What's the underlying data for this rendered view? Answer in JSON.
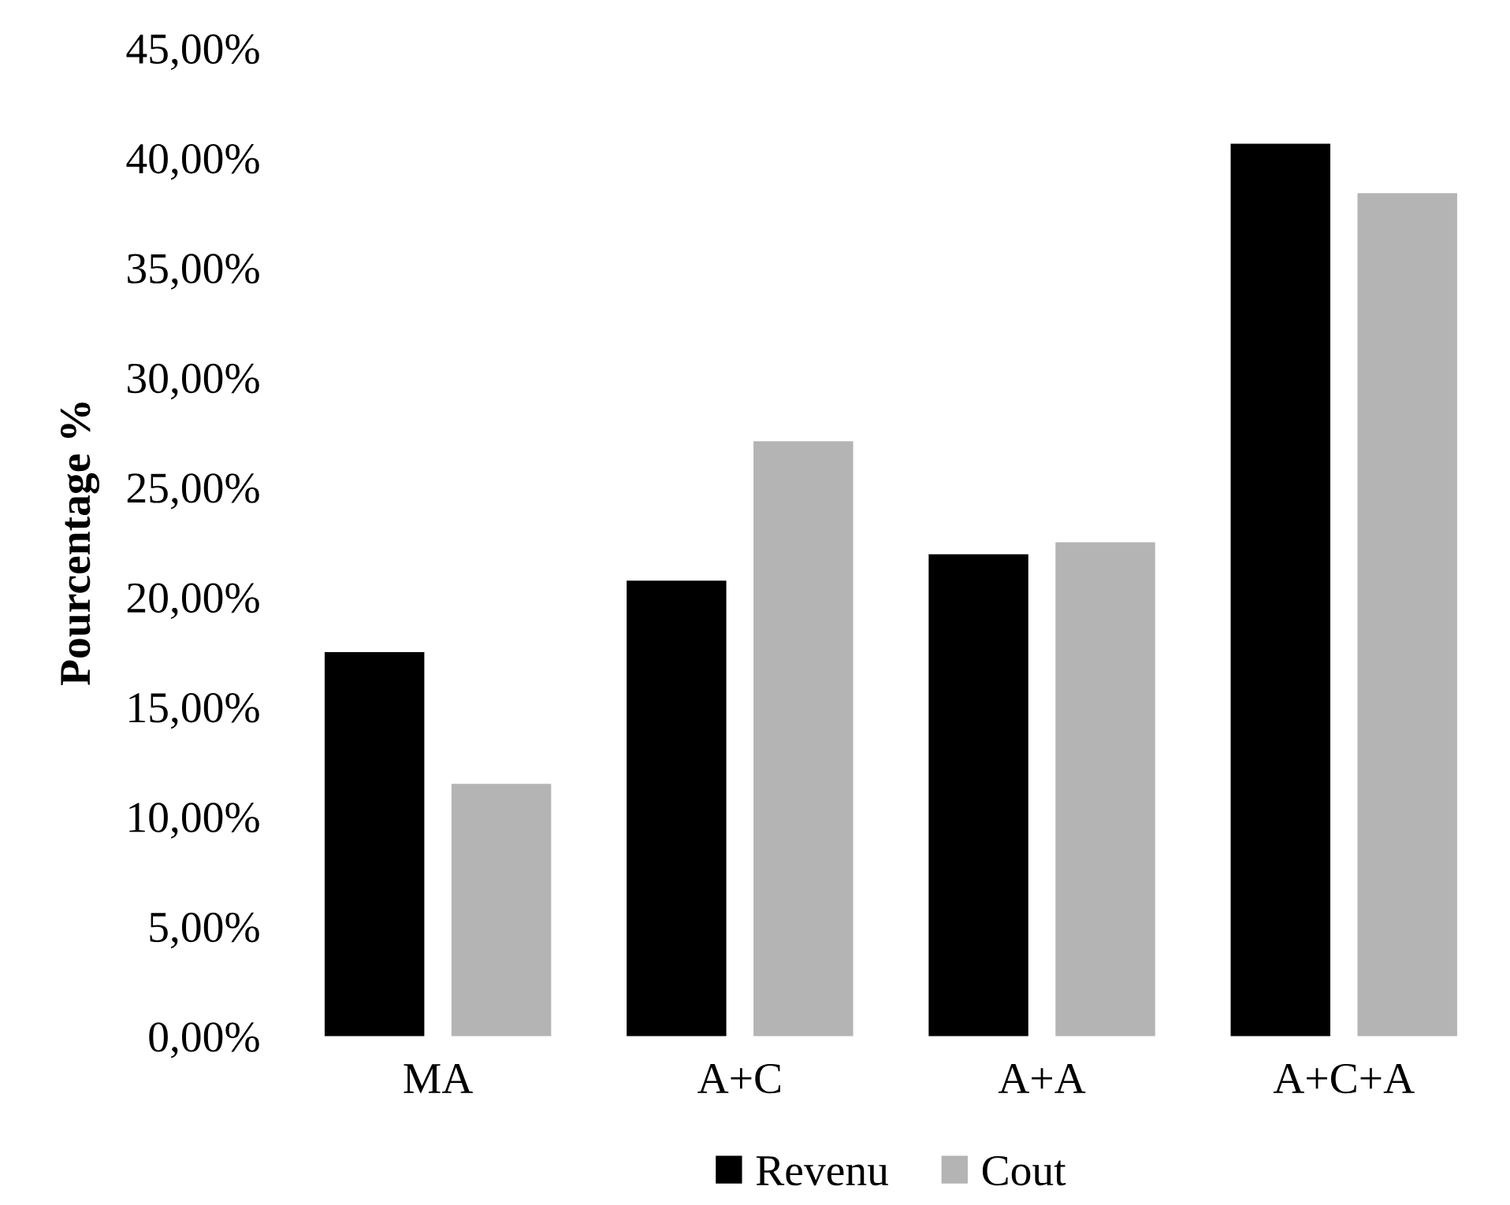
{
  "chart_data": {
    "type": "bar",
    "ylabel": "Pourcentage %",
    "categories": [
      "MA",
      "A+C",
      "A+A",
      "A+C+A"
    ],
    "series": [
      {
        "name": "Revenu",
        "color": "#000000",
        "values": [
          17.5,
          20.75,
          21.95,
          40.65
        ]
      },
      {
        "name": "Cout",
        "color": "#b4b4b4",
        "values": [
          11.5,
          27.1,
          22.5,
          38.4
        ]
      }
    ],
    "ylim": [
      0,
      45
    ],
    "yticks": [
      {
        "value": 0,
        "label": "0,00%"
      },
      {
        "value": 5,
        "label": "5,00%"
      },
      {
        "value": 10,
        "label": "10,00%"
      },
      {
        "value": 15,
        "label": "15,00%"
      },
      {
        "value": 20,
        "label": "20,00%"
      },
      {
        "value": 25,
        "label": "25,00%"
      },
      {
        "value": 30,
        "label": "30,00%"
      },
      {
        "value": 35,
        "label": "35,00%"
      },
      {
        "value": 40,
        "label": "40,00%"
      },
      {
        "value": 45,
        "label": "45,00%"
      }
    ],
    "legend": "bottom",
    "grid": false
  }
}
